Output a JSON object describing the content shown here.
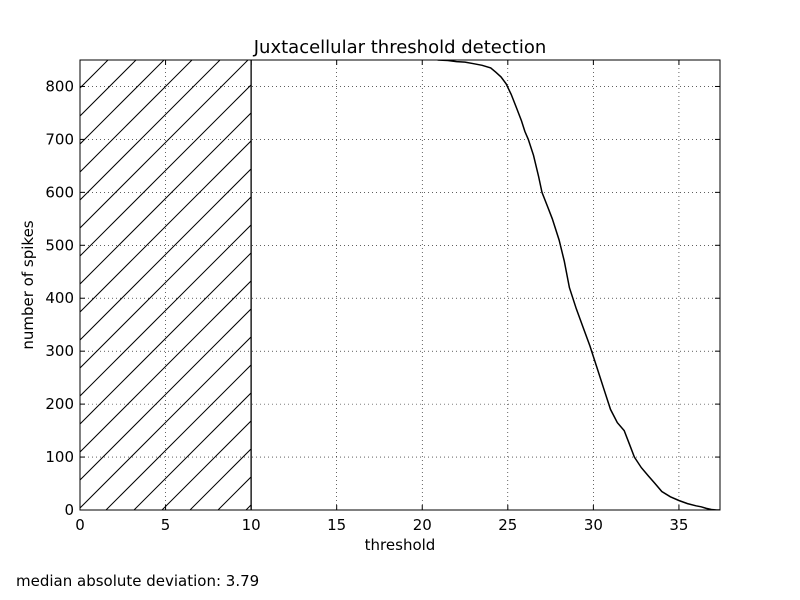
{
  "footnote": "median absolute deviation: 3.79",
  "chart_data": {
    "type": "line",
    "title": "Juxtacellular threshold detection",
    "xlabel": "threshold",
    "ylabel": "number of spikes",
    "xlim": [
      0,
      37.4
    ],
    "ylim": [
      0,
      850
    ],
    "xticks": [
      0,
      5,
      10,
      15,
      20,
      25,
      30,
      35
    ],
    "yticks": [
      0,
      100,
      200,
      300,
      400,
      500,
      600,
      700,
      800
    ],
    "grid": true,
    "excluded_region": {
      "x_start": 0,
      "x_end": 10,
      "fill": "hatched"
    },
    "series": [
      {
        "x": [
          20.9,
          21.5,
          22.0,
          22.5,
          23.0,
          23.5,
          24.0,
          24.3,
          24.6,
          24.9,
          25.2,
          25.5,
          25.8,
          26.0,
          26.2,
          26.5,
          26.8,
          27.0,
          27.3,
          27.6,
          28.0,
          28.3,
          28.6,
          29.0,
          29.4,
          29.8,
          30.2,
          30.6,
          31.0,
          31.4,
          31.8,
          32.1,
          32.4,
          32.8,
          33.2,
          33.6,
          34.0,
          34.5,
          35.0,
          35.5,
          36.0,
          36.3,
          36.6,
          36.9,
          37.2,
          37.4
        ],
        "y": [
          850,
          849,
          847,
          846,
          843,
          840,
          835,
          827,
          818,
          805,
          785,
          760,
          735,
          715,
          700,
          670,
          630,
          600,
          575,
          550,
          510,
          470,
          420,
          380,
          345,
          310,
          270,
          230,
          190,
          165,
          150,
          125,
          100,
          80,
          65,
          50,
          35,
          25,
          18,
          12,
          8,
          6,
          3,
          1,
          0,
          0
        ]
      }
    ]
  }
}
